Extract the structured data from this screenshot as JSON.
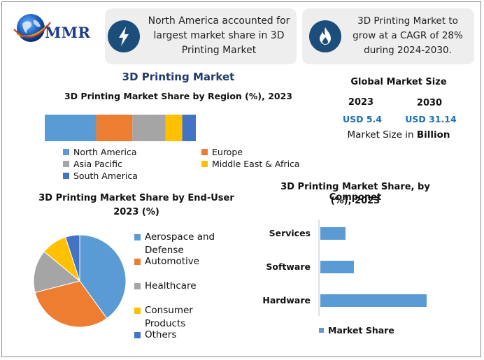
{
  "brand": {
    "name": "MMR"
  },
  "info_boxes": [
    {
      "text": "North America accounted for largest market share in 3D Printing Market",
      "icon": "lightning-icon"
    },
    {
      "text": "3D Printing Market to grow at a CAGR of 28% during 2024-2030.",
      "icon": "flame-icon"
    }
  ],
  "main_title": "3D Printing Market",
  "global_market": {
    "title": "Global Market Size",
    "year_a": "2023",
    "value_a": "USD 5.4",
    "year_b": "2030",
    "value_b": "USD 31.14",
    "note_prefix": "Market Size in ",
    "note_bold": "Billion"
  },
  "chart_data": [
    {
      "type": "bar",
      "orientation": "stacked-horizontal",
      "title": "3D Printing Market Share by Region (%), 2023",
      "series": [
        {
          "name": "North America",
          "value": 34,
          "color": "#5b9bd5"
        },
        {
          "name": "Europe",
          "value": 24,
          "color": "#ed7d31"
        },
        {
          "name": "Asia Pacific",
          "value": 22,
          "color": "#a5a5a5"
        },
        {
          "name": "Middle East & Africa",
          "value": 11,
          "color": "#ffc000"
        },
        {
          "name": "South America",
          "value": 9,
          "color": "#4472c4"
        }
      ],
      "legend_position": "bottom"
    },
    {
      "type": "pie",
      "title": "3D Printing Market Share by End-User",
      "subtitle": "2023 (%)",
      "categories": [
        "Aerospace and Defense",
        "Automotive",
        "Healthcare",
        "Consumer Products",
        "Others"
      ],
      "values": [
        40,
        31,
        15,
        9,
        5
      ],
      "colors": [
        "#5b9bd5",
        "#ed7d31",
        "#a5a5a5",
        "#ffc000",
        "#4472c4"
      ],
      "legend_position": "right"
    },
    {
      "type": "bar",
      "orientation": "horizontal",
      "title": "3D Printing Market Share, by Componet",
      "subtitle": "(%), 2023",
      "categories": [
        "Services",
        "Software",
        "Hardware"
      ],
      "series": [
        {
          "name": "Market Share",
          "values": [
            18,
            24,
            76
          ],
          "color": "#5b9bd5"
        }
      ],
      "xlim": [
        0,
        100
      ],
      "legend_position": "bottom"
    }
  ]
}
